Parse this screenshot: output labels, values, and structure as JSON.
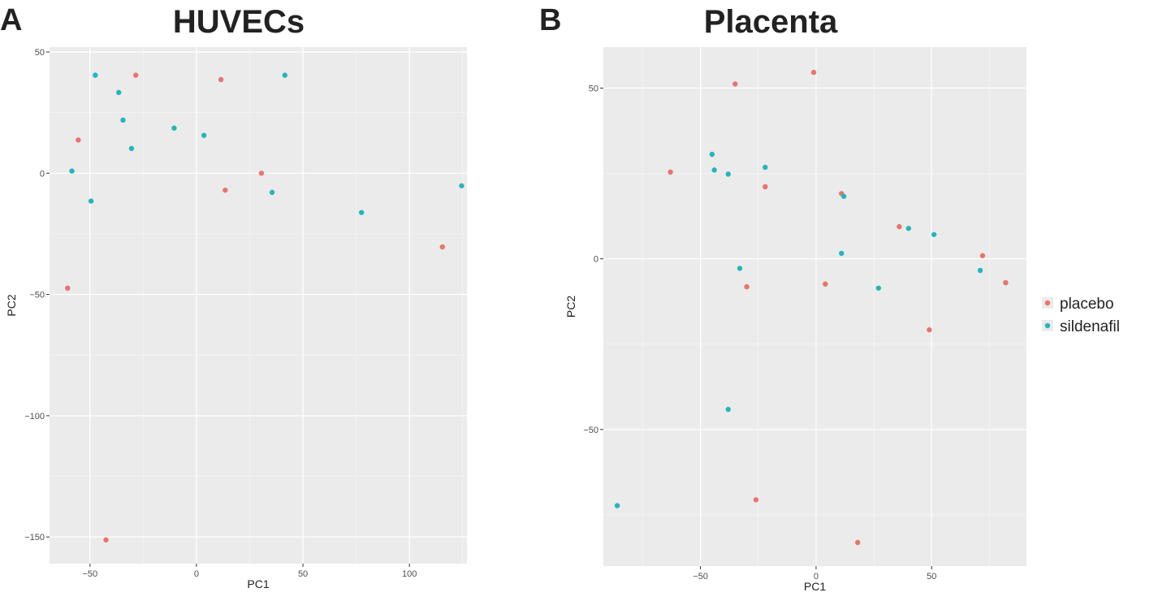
{
  "chart_data": [
    {
      "type": "scatter",
      "panel_letter": "A",
      "title": "HUVECs",
      "xlabel": "PC1",
      "ylabel": "PC2",
      "xlim": [
        -69,
        127
      ],
      "ylim": [
        -161,
        52
      ],
      "xticks": [
        -50,
        0,
        50,
        100
      ],
      "yticks": [
        -150,
        -100,
        -50,
        0,
        50
      ],
      "xtick_labels": [
        "−50",
        "0",
        "50",
        "100"
      ],
      "ytick_labels": [
        "−150",
        "−100",
        "−50",
        "0",
        "50"
      ],
      "grid": true,
      "series": [
        {
          "name": "placebo",
          "color": "#e8746b",
          "x": [
            -28.5,
            -55.5,
            11.5,
            30.5,
            13.5,
            115.5,
            -60.5,
            -42.5
          ],
          "y": [
            40.4,
            13.7,
            38.6,
            0.0,
            -7.0,
            -30.4,
            -47.4,
            -151.2
          ]
        },
        {
          "name": "sildenafil",
          "color": "#23b6bc",
          "x": [
            -47.5,
            -36.5,
            -34.5,
            -30.5,
            -10.5,
            3.5,
            41.5,
            -58.5,
            -49.5,
            35.5,
            77.5,
            124.5
          ],
          "y": [
            40.4,
            33.3,
            21.9,
            10.2,
            18.6,
            15.6,
            40.4,
            0.9,
            -11.5,
            -7.9,
            -16.2,
            -5.2
          ]
        }
      ]
    },
    {
      "type": "scatter",
      "panel_letter": "B",
      "title": "Placenta",
      "xlabel": "PC1",
      "ylabel": "PC2",
      "xlim": [
        -92,
        91
      ],
      "ylim": [
        -90,
        62
      ],
      "xticks": [
        -50,
        0,
        50
      ],
      "yticks": [
        -50,
        0,
        50
      ],
      "xtick_labels": [
        "−50",
        "0",
        "50"
      ],
      "ytick_labels": [
        "−50",
        "0",
        "50"
      ],
      "grid": true,
      "series": [
        {
          "name": "placebo",
          "color": "#e8746b",
          "x": [
            -1,
            -35,
            -63,
            -22,
            11,
            36,
            72,
            82,
            -30,
            4,
            49,
            -26,
            18
          ],
          "y": [
            54.6,
            51.2,
            25.4,
            21.1,
            19.1,
            9.4,
            0.9,
            -7.0,
            -8.2,
            -7.4,
            -20.8,
            -70.6,
            -83.1
          ],
          "name_hidden": false
        },
        {
          "name": "sildenafil",
          "color": "#23b6bc",
          "x": [
            -45,
            -44,
            -38,
            -22,
            12,
            40,
            51,
            -33,
            11,
            27,
            71,
            -38,
            -86
          ],
          "y": [
            30.6,
            26.0,
            24.8,
            26.8,
            18.3,
            8.9,
            7.1,
            -2.8,
            1.6,
            -8.6,
            -3.4,
            -44.1,
            -72.3
          ]
        }
      ]
    }
  ],
  "legend": {
    "items": [
      {
        "label": "placebo",
        "color": "#e8746b"
      },
      {
        "label": "sildenafil",
        "color": "#23b6bc"
      }
    ]
  }
}
